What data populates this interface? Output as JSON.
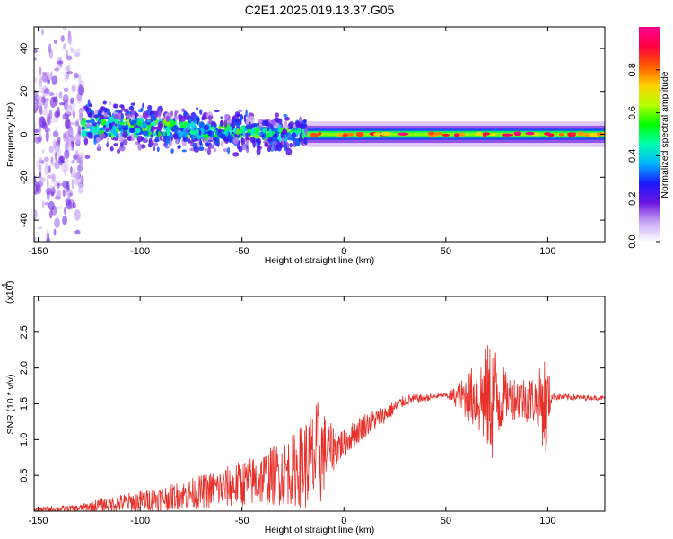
{
  "figure": {
    "title": "C2E1.2025.019.13.37.G05"
  },
  "chart_data": [
    {
      "type": "heatmap",
      "title": "C2E1.2025.019.13.37.G05",
      "xlabel": "Height of straight line (km)",
      "ylabel": "Frequency (Hz)",
      "xlim": [
        -152,
        128
      ],
      "ylim": [
        -50,
        50
      ],
      "x_ticks": [
        -150,
        -100,
        -50,
        0,
        50,
        100
      ],
      "y_ticks": [
        -40,
        -20,
        0,
        20,
        40
      ],
      "colorbar": {
        "label": "Normalized spectral amplitude",
        "range": [
          0,
          1
        ],
        "ticks": [
          0.0,
          0.2,
          0.4,
          0.6,
          0.8
        ],
        "tick_labels": [
          "0.0",
          "0.2",
          "0.4",
          "0.6",
          "0.8"
        ],
        "colormap": [
          "#ffffff",
          "#c9a6f5",
          "#6a14e0",
          "#1a1aff",
          "#00b4ff",
          "#00ffb0",
          "#00ff00",
          "#b4ff00",
          "#ffd000",
          "#ff5a00",
          "#ff0040",
          "#ff0090"
        ]
      },
      "bands": [
        {
          "x": [
            -152,
            -128
          ],
          "y_center": 0,
          "spread": 48,
          "level": 0.12
        },
        {
          "x": [
            -128,
            -18
          ],
          "y_center": 4,
          "spread": 9,
          "level": 0.35
        },
        {
          "x": [
            -18,
            128
          ],
          "y_center": 0,
          "spread": 3,
          "level": 0.55
        }
      ]
    },
    {
      "type": "line",
      "xlabel": "Height of straight line (km)",
      "ylabel": "SNR (10 * v/v)",
      "y_scale_label": "(x10",
      "y_scale_exp": "4",
      "xlim": [
        -152,
        128
      ],
      "ylim": [
        0,
        3.0
      ],
      "x_ticks": [
        -150,
        -100,
        -50,
        0,
        50,
        100
      ],
      "y_ticks": [
        0.5,
        1.0,
        1.5,
        2.0,
        2.5
      ],
      "y_tick_labels": [
        "0.5",
        "1.0",
        "1.5",
        "2.0",
        "2.5"
      ],
      "series": [
        {
          "color": "#e8302a",
          "envelope": [
            {
              "x": -152,
              "mean": 0.02,
              "amp": 0.03
            },
            {
              "x": -130,
              "mean": 0.04,
              "amp": 0.05
            },
            {
              "x": -120,
              "mean": 0.08,
              "amp": 0.1
            },
            {
              "x": -100,
              "mean": 0.14,
              "amp": 0.15
            },
            {
              "x": -80,
              "mean": 0.22,
              "amp": 0.2
            },
            {
              "x": -60,
              "mean": 0.32,
              "amp": 0.28
            },
            {
              "x": -40,
              "mean": 0.45,
              "amp": 0.38
            },
            {
              "x": -25,
              "mean": 0.58,
              "amp": 0.5
            },
            {
              "x": -15,
              "mean": 0.7,
              "amp": 0.75
            },
            {
              "x": -12,
              "mean": 0.8,
              "amp": 0.8
            },
            {
              "x": -8,
              "mean": 0.85,
              "amp": 0.4
            },
            {
              "x": 0,
              "mean": 0.95,
              "amp": 0.2
            },
            {
              "x": 10,
              "mean": 1.2,
              "amp": 0.18
            },
            {
              "x": 20,
              "mean": 1.35,
              "amp": 0.12
            },
            {
              "x": 30,
              "mean": 1.55,
              "amp": 0.08
            },
            {
              "x": 50,
              "mean": 1.62,
              "amp": 0.03
            },
            {
              "x": 55,
              "mean": 1.6,
              "amp": 0.15
            },
            {
              "x": 65,
              "mean": 1.6,
              "amp": 0.5
            },
            {
              "x": 73,
              "mean": 1.55,
              "amp": 0.9
            },
            {
              "x": 80,
              "mean": 1.6,
              "amp": 0.3
            },
            {
              "x": 95,
              "mean": 1.55,
              "amp": 0.35
            },
            {
              "x": 99,
              "mean": 1.5,
              "amp": 0.8
            },
            {
              "x": 102,
              "mean": 1.6,
              "amp": 0.05
            },
            {
              "x": 128,
              "mean": 1.58,
              "amp": 0.03
            }
          ]
        }
      ]
    }
  ]
}
